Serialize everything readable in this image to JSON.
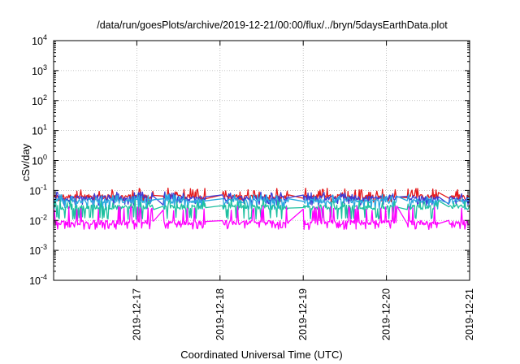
{
  "chart_data": {
    "type": "line",
    "title": "/data/run/goesPlots/archive/2019-12-21/00:00/flux/../bryn/5daysEarthData.plot",
    "xlabel": "Coordinated Universal Time (UTC)",
    "ylabel": "cSv/day",
    "yscale": "log",
    "ylim": [
      0.0001,
      10000
    ],
    "xlim": [
      "2019-12-16T00:00",
      "2019-12-21T00:00"
    ],
    "x_ticks": [
      "2019-12-17",
      "2019-12-18",
      "2019-12-19",
      "2019-12-20",
      "2019-12-21"
    ],
    "y_ticks": [
      {
        "value": 0.0001,
        "base": "10",
        "exp": "-4"
      },
      {
        "value": 0.001,
        "base": "10",
        "exp": "-3"
      },
      {
        "value": 0.01,
        "base": "10",
        "exp": "-2"
      },
      {
        "value": 0.1,
        "base": "10",
        "exp": "-1"
      },
      {
        "value": 1,
        "base": "10",
        "exp": "0"
      },
      {
        "value": 10,
        "base": "10",
        "exp": "1"
      },
      {
        "value": 100,
        "base": "10",
        "exp": "2"
      },
      {
        "value": 1000,
        "base": "10",
        "exp": "3"
      },
      {
        "value": 10000,
        "base": "10",
        "exp": "4"
      }
    ],
    "grid": true,
    "legend": "none",
    "series": [
      {
        "color": "#e41a1c",
        "base": 0.062,
        "lo": 0.045,
        "hi": 0.12
      },
      {
        "color": "#3b3bd6",
        "base": 0.055,
        "lo": 0.035,
        "hi": 0.09
      },
      {
        "color": "#2aa8e0",
        "base": 0.045,
        "lo": 0.025,
        "hi": 0.075
      },
      {
        "color": "#1ec0a0",
        "base": 0.028,
        "lo": 0.012,
        "hi": 0.05
      },
      {
        "color": "#ff00ff",
        "base": 0.0085,
        "lo": 0.0055,
        "hi": 0.03
      }
    ],
    "gaps": [
      {
        "start": "2019-12-17T05:00",
        "end": "2019-12-17T07:30"
      },
      {
        "start": "2019-12-17T20:00",
        "end": "2019-12-18T00:30"
      },
      {
        "start": "2019-12-18T20:00",
        "end": "2019-12-19T00:00"
      },
      {
        "start": "2019-12-20T03:00",
        "end": "2019-12-20T06:00"
      },
      {
        "start": "2019-12-20T15:00",
        "end": "2019-12-20T18:00"
      }
    ]
  }
}
